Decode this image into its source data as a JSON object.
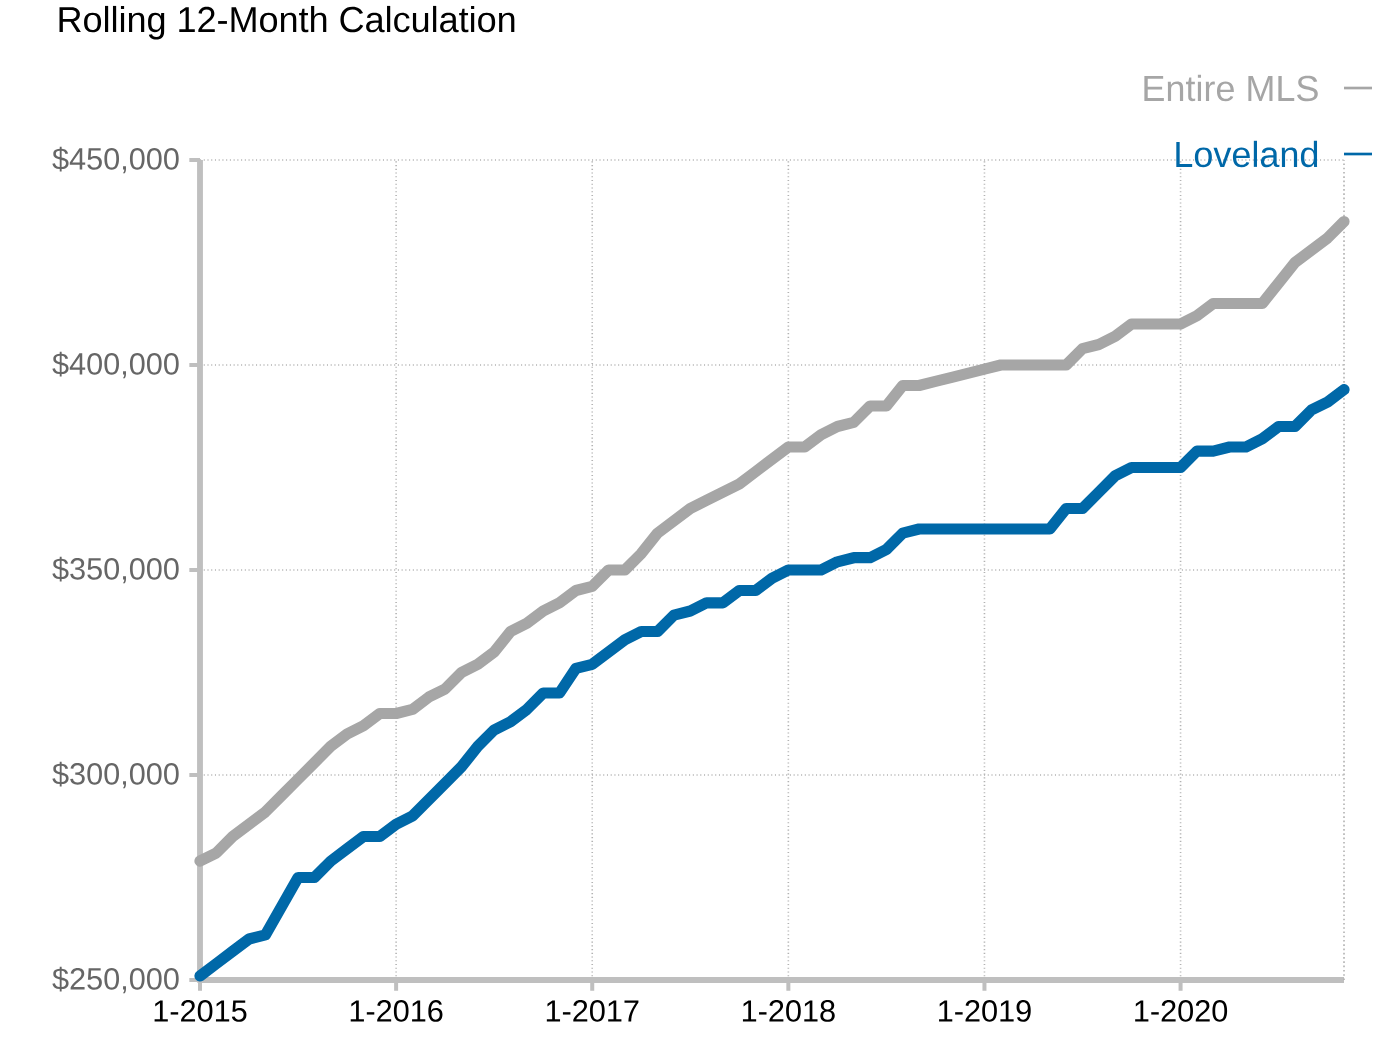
{
  "chart_data": {
    "type": "line",
    "title": "Rolling 12-Month Calculation",
    "x": [
      "2015-01",
      "2015-02",
      "2015-03",
      "2015-04",
      "2015-05",
      "2015-06",
      "2015-07",
      "2015-08",
      "2015-09",
      "2015-10",
      "2015-11",
      "2015-12",
      "2016-01",
      "2016-02",
      "2016-03",
      "2016-04",
      "2016-05",
      "2016-06",
      "2016-07",
      "2016-08",
      "2016-09",
      "2016-10",
      "2016-11",
      "2016-12",
      "2017-01",
      "2017-02",
      "2017-03",
      "2017-04",
      "2017-05",
      "2017-06",
      "2017-07",
      "2017-08",
      "2017-09",
      "2017-10",
      "2017-11",
      "2017-12",
      "2018-01",
      "2018-02",
      "2018-03",
      "2018-04",
      "2018-05",
      "2018-06",
      "2018-07",
      "2018-08",
      "2018-09",
      "2018-10",
      "2018-11",
      "2018-12",
      "2019-01",
      "2019-02",
      "2019-03",
      "2019-04",
      "2019-05",
      "2019-06",
      "2019-07",
      "2019-08",
      "2019-09",
      "2019-10",
      "2019-11",
      "2019-12",
      "2020-01",
      "2020-02",
      "2020-03",
      "2020-04",
      "2020-05",
      "2020-06",
      "2020-07",
      "2020-08",
      "2020-09",
      "2020-10",
      "2020-11"
    ],
    "series": [
      {
        "name": "Entire MLS",
        "color": "#a6a6a6",
        "values": [
          279000,
          281000,
          285000,
          288000,
          291000,
          295000,
          299000,
          303000,
          307000,
          310000,
          312000,
          315000,
          315000,
          316000,
          319000,
          321000,
          325000,
          327000,
          330000,
          335000,
          337000,
          340000,
          342000,
          345000,
          346000,
          350000,
          350000,
          354000,
          359000,
          362000,
          365000,
          367000,
          369000,
          371000,
          374000,
          377000,
          380000,
          380000,
          383000,
          385000,
          386000,
          390000,
          390000,
          395000,
          395000,
          396000,
          397000,
          398000,
          399000,
          400000,
          400000,
          400000,
          400000,
          400000,
          404000,
          405000,
          407000,
          410000,
          410000,
          410000,
          410000,
          412000,
          415000,
          415000,
          415000,
          415000,
          420000,
          425000,
          428000,
          431000,
          435000
        ]
      },
      {
        "name": "Loveland",
        "color": "#0068a8",
        "values": [
          251000,
          254000,
          257000,
          260000,
          261000,
          268000,
          275000,
          275000,
          279000,
          282000,
          285000,
          285000,
          288000,
          290000,
          294000,
          298000,
          302000,
          307000,
          311000,
          313000,
          316000,
          320000,
          320000,
          326000,
          327000,
          330000,
          333000,
          335000,
          335000,
          339000,
          340000,
          342000,
          342000,
          345000,
          345000,
          348000,
          350000,
          350000,
          350000,
          352000,
          353000,
          353000,
          355000,
          359000,
          360000,
          360000,
          360000,
          360000,
          360000,
          360000,
          360000,
          360000,
          360000,
          365000,
          365000,
          369000,
          373000,
          375000,
          375000,
          375000,
          375000,
          379000,
          379000,
          380000,
          380000,
          382000,
          385000,
          385000,
          389000,
          391000,
          394000
        ]
      }
    ],
    "xlim": [
      "2015-01",
      "2020-11"
    ],
    "xticks": [
      {
        "value": "2015-01",
        "label": "1-2015"
      },
      {
        "value": "2016-01",
        "label": "1-2016"
      },
      {
        "value": "2017-01",
        "label": "1-2017"
      },
      {
        "value": "2018-01",
        "label": "1-2018"
      },
      {
        "value": "2019-01",
        "label": "1-2019"
      },
      {
        "value": "2020-01",
        "label": "1-2020"
      }
    ],
    "ylim": [
      250000,
      450000
    ],
    "yticks": [
      {
        "value": 250000,
        "label": "$250,000"
      },
      {
        "value": 300000,
        "label": "$300,000"
      },
      {
        "value": 350000,
        "label": "$350,000"
      },
      {
        "value": 400000,
        "label": "$400,000"
      },
      {
        "value": 450000,
        "label": "$450,000"
      }
    ],
    "grid": true,
    "legend": "top right",
    "marker": "none",
    "line_style": "solid"
  }
}
